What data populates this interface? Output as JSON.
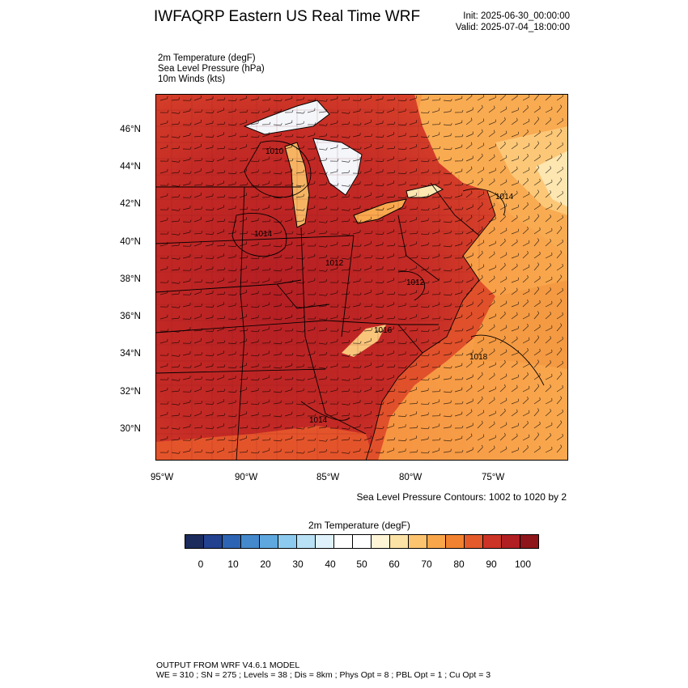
{
  "header": {
    "title": "IWFAQRP Eastern US Real Time WRF",
    "init": "Init: 2025-06-30_00:00:00",
    "valid": "Valid: 2025-07-04_18:00:00"
  },
  "fields": [
    "2m Temperature   (degF)",
    "Sea Level Pressure   (hPa)",
    "10m Winds   (kts)"
  ],
  "map": {
    "lat_labels": [
      "46°N",
      "44°N",
      "42°N",
      "40°N",
      "38°N",
      "36°N",
      "34°N",
      "32°N",
      "30°N"
    ],
    "lon_labels": [
      "95°W",
      "90°W",
      "85°W",
      "80°W",
      "75°W"
    ],
    "pressure_labels": [
      "1010",
      "1014",
      "1014",
      "1012",
      "1016",
      "1018",
      "1012",
      "1014"
    ],
    "colors": {
      "hot": "#b01c22",
      "warm": "#d9432a",
      "orange": "#f08a3a",
      "light_orange": "#f9ab52",
      "pale": "#fde6b0",
      "lake_cold": "#f4f6fa"
    }
  },
  "contour_note": "Sea Level Pressure Contours: 1002 to 1020 by 2",
  "colorbar": {
    "title": "2m Temperature  (degF)",
    "colors": [
      "#1a2b5c",
      "#22418f",
      "#2d64b3",
      "#4489cc",
      "#5ea8df",
      "#8ccbef",
      "#b8e1f6",
      "#dff2fb",
      "#ffffff",
      "#ffffff",
      "#fff4d6",
      "#fde2a6",
      "#fcc46f",
      "#f9a64a",
      "#f2822f",
      "#e45a2b",
      "#cc3426",
      "#b11f23",
      "#8e1519"
    ],
    "labels": [
      "0",
      "10",
      "20",
      "30",
      "40",
      "50",
      "60",
      "70",
      "80",
      "90",
      "100"
    ]
  },
  "footer": {
    "line1": "OUTPUT FROM WRF V4.6.1 MODEL",
    "line2": "WE = 310 ; SN = 275 ; Levels = 38 ; Dis = 8km ; Phys Opt = 8 ; PBL Opt = 1 ; Cu Opt = 3"
  }
}
